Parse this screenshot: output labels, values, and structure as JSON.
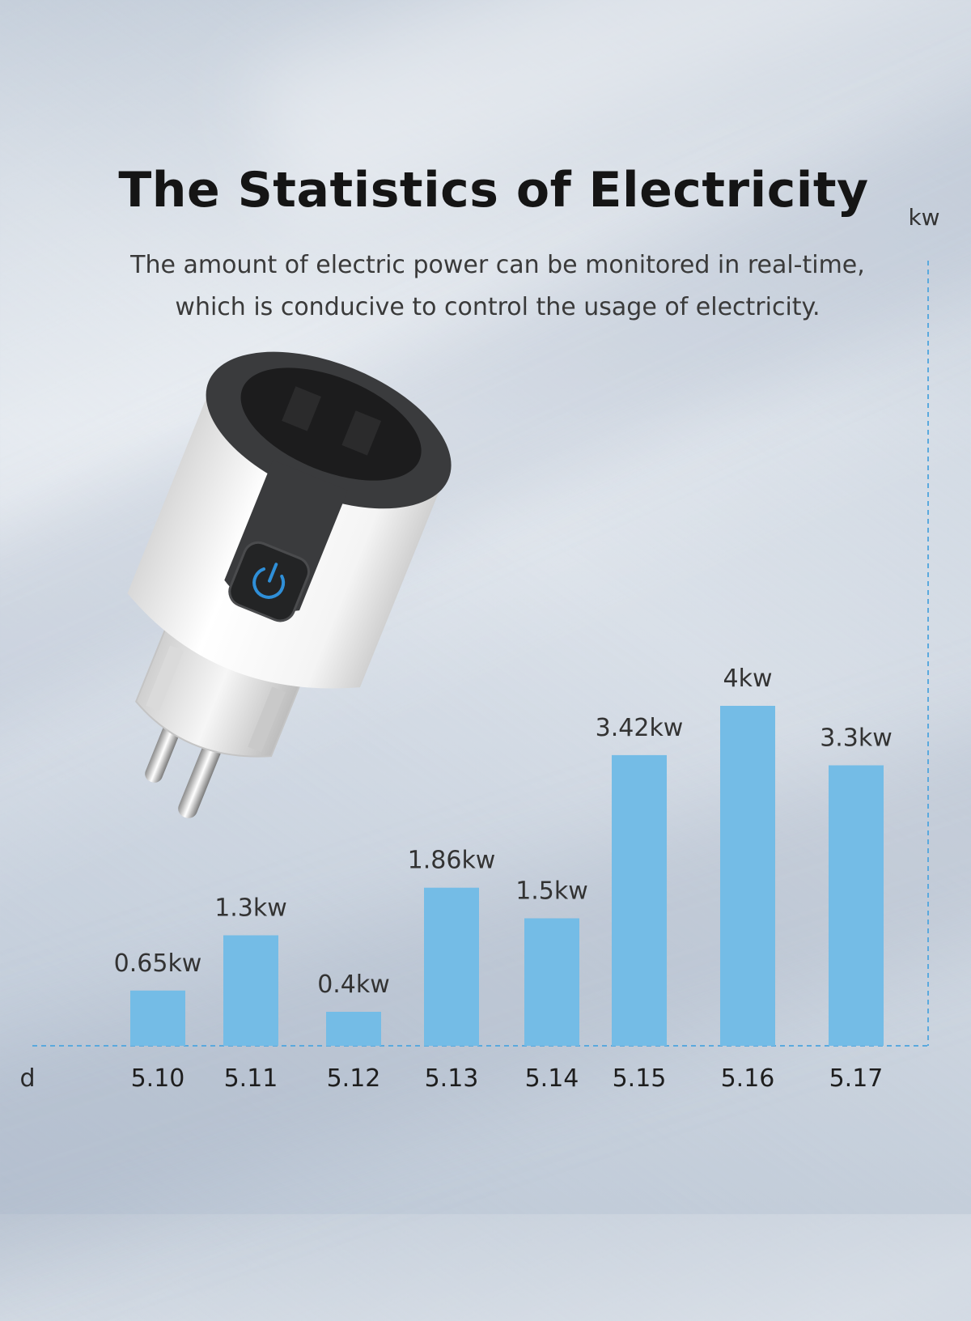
{
  "header": {
    "title": "The Statistics of Electricity",
    "subtitle_line1": "The amount of electric power can be monitored in real-time,",
    "subtitle_line2": "which is conducive to control the usage of electricity."
  },
  "product": {
    "name": "smart-plug",
    "button_icon": "power-icon",
    "colors": {
      "body": "#f2f2f2",
      "frame": "#3a3b3d",
      "button_glow": "#2f8fd8"
    }
  },
  "chart_data": {
    "type": "bar",
    "title": "The Statistics of Electricity",
    "xlabel": "d",
    "ylabel": "kw",
    "categories": [
      "5.10",
      "5.11",
      "5.12",
      "5.13",
      "5.14",
      "5.15",
      "5.16",
      "5.17"
    ],
    "values": [
      0.65,
      1.3,
      0.4,
      1.86,
      1.5,
      3.42,
      4,
      3.3
    ],
    "labels": [
      "0.65kw",
      "1.3kw",
      "0.4kw",
      "1.86kw",
      "1.5kw",
      "3.42kw",
      "4kw",
      "3.3kw"
    ],
    "bar_color": "#74bce6",
    "axis_color": "#5aa9de",
    "grid": false,
    "ylim": [
      0,
      4.5
    ]
  }
}
